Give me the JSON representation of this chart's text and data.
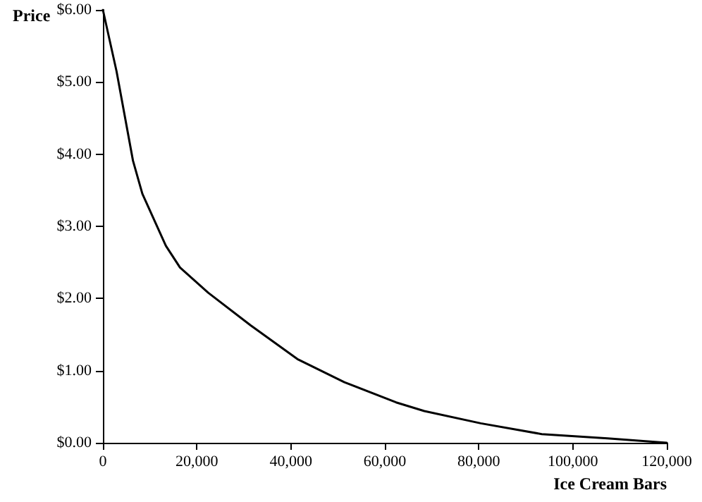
{
  "chart_data": {
    "type": "line",
    "xlabel": "Ice Cream Bars",
    "ylabel": "Price",
    "x": [
      0,
      2900,
      6400,
      8400,
      13400,
      16400,
      22400,
      31400,
      41400,
      51400,
      62400,
      68400,
      80400,
      93400,
      107400,
      120000
    ],
    "series": [
      {
        "color": "#000000",
        "values": [
          6,
          5.15,
          3.91,
          3.45,
          2.73,
          2.43,
          2.08,
          1.63,
          1.16,
          0.84,
          0.56,
          0.44,
          0.27,
          0.12,
          0.06,
          0
        ]
      }
    ],
    "xlim": [
      0,
      120000
    ],
    "xticks": [
      {
        "value": 0,
        "label": "0"
      },
      {
        "value": 20000,
        "label": "20,000"
      },
      {
        "value": 40000,
        "label": "40,000"
      },
      {
        "value": 60000,
        "label": "60,000"
      },
      {
        "value": 80000,
        "label": "80,000"
      },
      {
        "value": 100000,
        "label": "100,000"
      },
      {
        "value": 120000,
        "label": "120,000"
      }
    ],
    "ylim": [
      0,
      6
    ],
    "yticks": [
      {
        "value": 0,
        "label": "$0.00"
      },
      {
        "value": 1,
        "label": "$1.00"
      },
      {
        "value": 2,
        "label": "$2.00"
      },
      {
        "value": 3,
        "label": "$3.00"
      },
      {
        "value": 4,
        "label": "$4.00"
      },
      {
        "value": 5,
        "label": "$5.00"
      },
      {
        "value": 6,
        "label": "$6.00"
      }
    ],
    "grid": false,
    "marker": "none",
    "line_style": "solid"
  }
}
